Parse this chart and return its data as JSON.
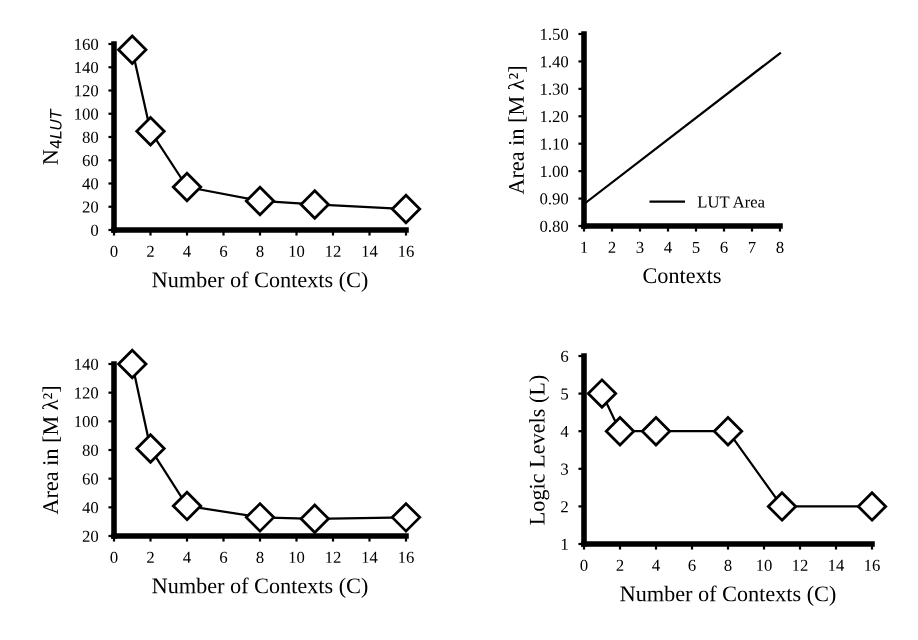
{
  "chart_data": [
    {
      "type": "line",
      "xlabel": "Number of Contexts (C)",
      "ylabel": "N$_{4LUT}$",
      "x": [
        1,
        2,
        4,
        8,
        11,
        16
      ],
      "series": [
        {
          "color": "#000000",
          "values": [
            155,
            85,
            37,
            25,
            22,
            18
          ]
        }
      ],
      "xlim": [
        0,
        16
      ],
      "xticks": [
        0,
        2,
        4,
        6,
        8,
        10,
        12,
        14,
        16
      ],
      "ylim": [
        0,
        160
      ],
      "yticks": [
        0,
        20,
        40,
        60,
        80,
        100,
        120,
        140,
        160
      ],
      "marker": "diamond",
      "grid": false,
      "legend": false
    },
    {
      "type": "line",
      "xlabel": "Contexts",
      "ylabel": "Area in [M λ²]",
      "x": [
        1,
        8
      ],
      "series": [
        {
          "name": "LUT Area",
          "color": "#000000",
          "values": [
            0.88,
            1.43
          ]
        }
      ],
      "xlim": [
        1,
        8
      ],
      "xticks": [
        1,
        2,
        3,
        4,
        5,
        6,
        7,
        8
      ],
      "ylim": [
        0.8,
        1.5
      ],
      "yticks": [
        {
          "value": 0.8,
          "label": "0.80"
        },
        {
          "value": 0.9,
          "label": "0.90"
        },
        {
          "value": 1.0,
          "label": "1.00"
        },
        {
          "value": 1.1,
          "label": "1.10"
        },
        {
          "value": 1.2,
          "label": "1.20"
        },
        {
          "value": 1.3,
          "label": "1.30"
        },
        {
          "value": 1.4,
          "label": "1.40"
        },
        {
          "value": 1.5,
          "label": "1.50"
        }
      ],
      "marker": "none",
      "grid": false,
      "legend": "bottom right"
    },
    {
      "type": "line",
      "xlabel": "Number of Contexts (C)",
      "ylabel": "Area in [M λ²]",
      "x": [
        1,
        2,
        4,
        8,
        11,
        16
      ],
      "series": [
        {
          "color": "#000000",
          "values": [
            140,
            81,
            41,
            33,
            32,
            33
          ]
        }
      ],
      "xlim": [
        0,
        16
      ],
      "xticks": [
        0,
        2,
        4,
        6,
        8,
        10,
        12,
        14,
        16
      ],
      "ylim": [
        20,
        140
      ],
      "yticks": [
        20,
        40,
        60,
        80,
        100,
        120,
        140
      ],
      "marker": "diamond",
      "grid": false,
      "legend": false
    },
    {
      "type": "line",
      "xlabel": "Number of Contexts (C)",
      "ylabel": "Logic Levels (L)",
      "x": [
        1,
        2,
        4,
        8,
        11,
        16
      ],
      "series": [
        {
          "color": "#000000",
          "values": [
            5,
            4,
            4,
            4,
            2,
            2
          ]
        }
      ],
      "xlim": [
        0,
        16
      ],
      "xticks": [
        0,
        2,
        4,
        6,
        8,
        10,
        12,
        14,
        16
      ],
      "ylim": [
        1,
        6
      ],
      "yticks": [
        1,
        2,
        3,
        4,
        5,
        6
      ],
      "marker": "diamond",
      "grid": false,
      "legend": false
    }
  ]
}
